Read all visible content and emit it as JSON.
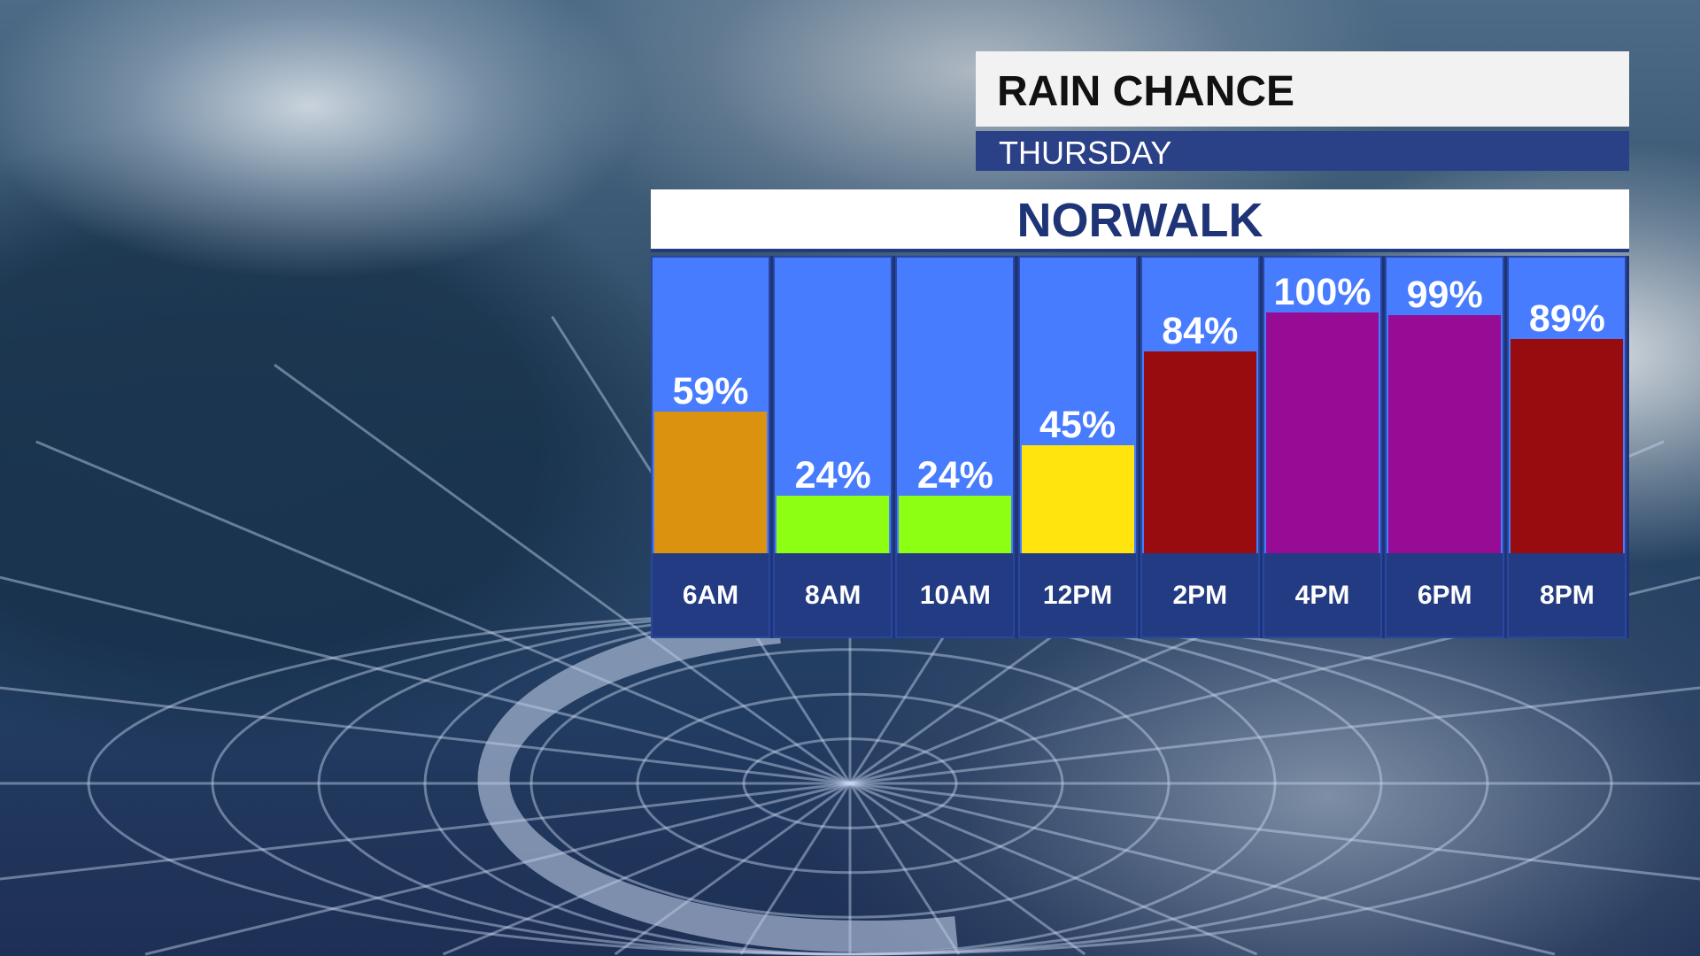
{
  "header": {
    "title": "RAIN CHANCE",
    "day": "THURSDAY",
    "location": "NORWALK"
  },
  "chart_data": {
    "type": "bar",
    "title": "RAIN CHANCE",
    "subtitle": "THURSDAY - NORWALK",
    "categories": [
      "6AM",
      "8AM",
      "10AM",
      "12PM",
      "2PM",
      "4PM",
      "6PM",
      "8PM"
    ],
    "values": [
      59,
      24,
      24,
      45,
      84,
      100,
      99,
      89
    ],
    "labels": [
      "59%",
      "24%",
      "24%",
      "45%",
      "84%",
      "100%",
      "99%",
      "89%"
    ],
    "colors": [
      "#db920f",
      "#8cff12",
      "#8cff12",
      "#ffe40e",
      "#980c10",
      "#960c94",
      "#960c94",
      "#980c10"
    ],
    "ylim": [
      0,
      100
    ],
    "xlabel": "",
    "ylabel": ""
  }
}
